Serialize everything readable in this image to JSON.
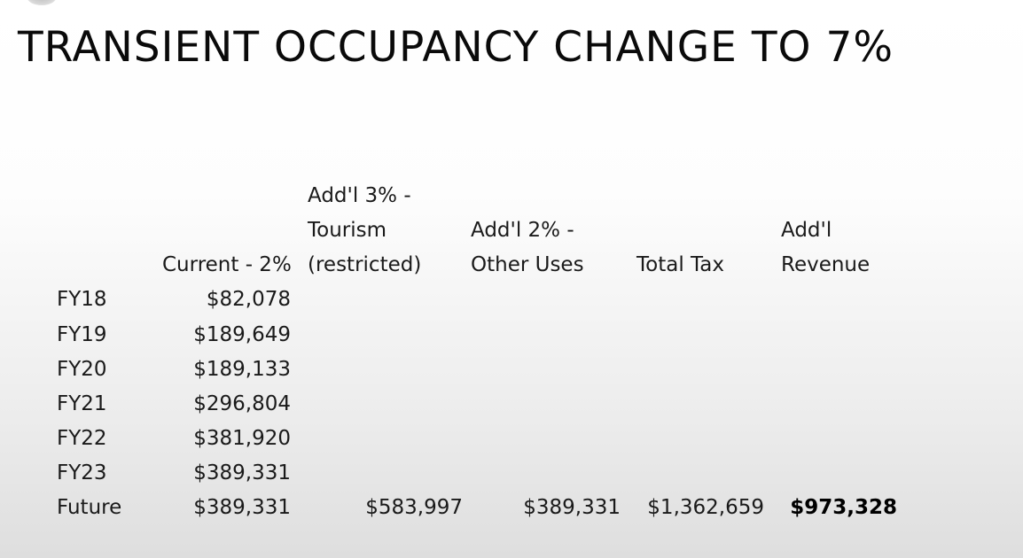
{
  "slide": {
    "title": "TRANSIENT OCCUPANCY CHANGE TO 7%"
  },
  "table": {
    "headers": {
      "current": [
        "Current - 2%"
      ],
      "tourism": [
        "Add'l 3% -",
        "Tourism",
        "(restricted)"
      ],
      "other": [
        "Add'l 2% -",
        "Other Uses"
      ],
      "total": [
        "Total Tax"
      ],
      "revenue": [
        "Add'l",
        "Revenue"
      ]
    },
    "rows": [
      {
        "label": "FY18",
        "current": "$82,078",
        "tourism": "",
        "other": "",
        "total": "",
        "revenue": ""
      },
      {
        "label": "FY19",
        "current": "$189,649",
        "tourism": "",
        "other": "",
        "total": "",
        "revenue": ""
      },
      {
        "label": "FY20",
        "current": "$189,133",
        "tourism": "",
        "other": "",
        "total": "",
        "revenue": ""
      },
      {
        "label": "FY21",
        "current": "$296,804",
        "tourism": "",
        "other": "",
        "total": "",
        "revenue": ""
      },
      {
        "label": "FY22",
        "current": "$381,920",
        "tourism": "",
        "other": "",
        "total": "",
        "revenue": ""
      },
      {
        "label": "FY23",
        "current": "$389,331",
        "tourism": "",
        "other": "",
        "total": "",
        "revenue": ""
      },
      {
        "label": "Future",
        "current": "$389,331",
        "tourism": "$583,997",
        "other": "$389,331",
        "total": "$1,362,659",
        "revenue": "$973,328"
      }
    ]
  }
}
